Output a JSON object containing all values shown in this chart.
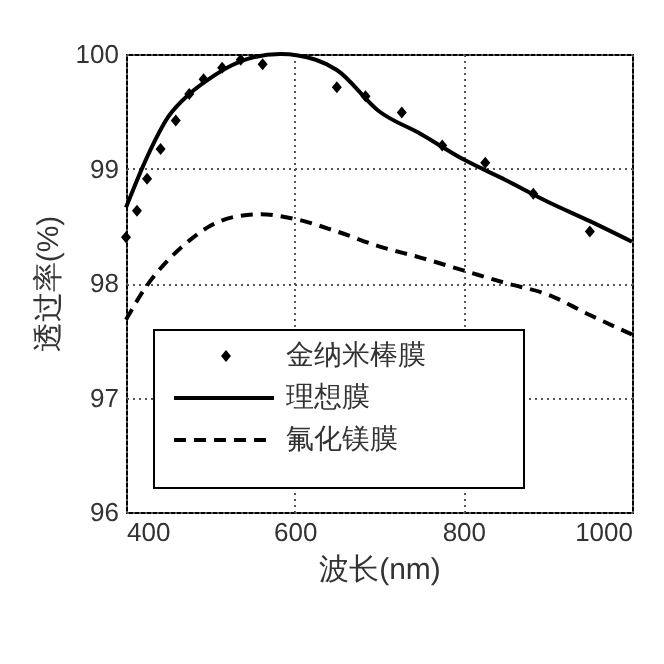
{
  "chart_data": {
    "type": "line",
    "xlabel": "波长(nm)",
    "ylabel": "透过率(%)",
    "xlim": [
      400,
      1000
    ],
    "xticks": [
      400,
      600,
      800,
      1000
    ],
    "ylim": [
      96,
      100
    ],
    "yticks": [
      96,
      97,
      98,
      99,
      100
    ],
    "grid": true,
    "legend": "bottom left",
    "series": [
      {
        "name": "金纳米棒膜",
        "type": "scatter",
        "marker": "diamond",
        "color": "#000000",
        "x": [
          400,
          413,
          425,
          441,
          459,
          475,
          492,
          514,
          536,
          562,
          650,
          684,
          727,
          775,
          826,
          883,
          950
        ],
        "values": [
          98.4,
          98.63,
          98.91,
          99.17,
          99.42,
          99.65,
          99.78,
          99.88,
          99.95,
          99.91,
          99.71,
          99.63,
          99.49,
          99.2,
          99.05,
          98.78,
          98.45
        ]
      },
      {
        "name": "理想膜",
        "type": "line",
        "line_style": "solid",
        "color": "#000000",
        "x": [
          400,
          425,
          450,
          475,
          500,
          525,
          550,
          583,
          625,
          650,
          700,
          750,
          800,
          850,
          900,
          950,
          1000
        ],
        "values": [
          98.66,
          99.1,
          99.45,
          99.65,
          99.79,
          99.9,
          99.97,
          100,
          99.95,
          99.86,
          99.5,
          99.3,
          99.08,
          98.9,
          98.71,
          98.54,
          98.36
        ]
      },
      {
        "name": "氟化镁膜",
        "type": "line",
        "line_style": "dashed",
        "color": "#000000",
        "x": [
          400,
          425,
          450,
          475,
          500,
          530,
          560,
          600,
          650,
          700,
          750,
          800,
          850,
          900,
          950,
          1000
        ],
        "values": [
          97.68,
          97.98,
          98.2,
          98.37,
          98.5,
          98.58,
          98.6,
          98.56,
          98.45,
          98.32,
          98.22,
          98.11,
          98.0,
          97.9,
          97.72,
          97.55
        ]
      }
    ]
  }
}
